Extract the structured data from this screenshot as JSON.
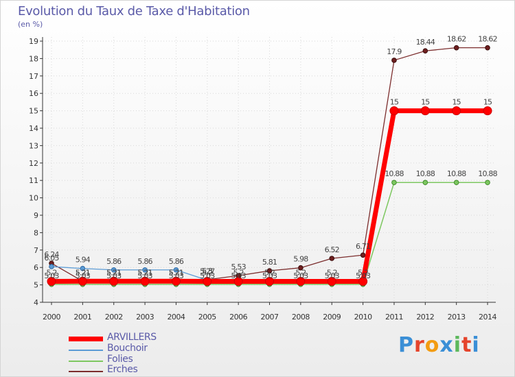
{
  "chart_data": {
    "type": "line",
    "title": "Evolution du Taux de Taxe d'Habitation",
    "ylabel": "(en %)",
    "xlabel": "",
    "ylim": [
      4,
      19
    ],
    "yticks": [
      "4",
      "5",
      "6",
      "7",
      "8",
      "9",
      "10",
      "11",
      "12",
      "13",
      "14",
      "15",
      "16",
      "17",
      "18",
      "19"
    ],
    "categories": [
      "2000",
      "2001",
      "2002",
      "2003",
      "2004",
      "2005",
      "2006",
      "2007",
      "2008",
      "2009",
      "2010",
      "2011",
      "2012",
      "2013",
      "2014"
    ],
    "series": [
      {
        "name": "ARVILLERS",
        "color": "#ff0000",
        "values": [
          5.2,
          5.21,
          5.21,
          5.21,
          5.21,
          5.2,
          5.2,
          5.2,
          5.2,
          5.2,
          5.2,
          15,
          15,
          15,
          15
        ],
        "labels": [
          "5.2",
          "5.21",
          "5.21",
          "5.21",
          "5.21",
          "5.2",
          "5.2",
          "5.2",
          "5.2",
          "5.2",
          "5.2",
          "15",
          "15",
          "15",
          "15"
        ]
      },
      {
        "name": "Bouchoir",
        "color": "#5b9bd5",
        "values": [
          6.05,
          5.94,
          5.86,
          5.86,
          5.86,
          5.27,
          null,
          null,
          null,
          null,
          null,
          null,
          null,
          null,
          null
        ],
        "labels": [
          "6.05",
          "5.94",
          "5.86",
          "5.86",
          "5.86",
          "5.27",
          "",
          "",
          "",
          "",
          "",
          "",
          "",
          "",
          ""
        ]
      },
      {
        "name": "Folies",
        "color": "#7dc760",
        "values": [
          5.03,
          5.03,
          5.03,
          5.03,
          5.03,
          5.03,
          5.03,
          5.03,
          5.03,
          5.03,
          5.03,
          10.88,
          10.88,
          10.88,
          10.88
        ],
        "labels": [
          "5.03",
          "5.03",
          "5.03",
          "5.03",
          "5.03",
          "5.03",
          "5.03",
          "5.03",
          "5.03",
          "5.03",
          "5.03",
          "10.88",
          "10.88",
          "10.88",
          "10.88"
        ]
      },
      {
        "name": "Erches",
        "color": "#7b2c2c",
        "values": [
          6.24,
          5.21,
          5.21,
          5.21,
          5.21,
          5.3,
          5.53,
          5.81,
          5.98,
          6.52,
          6.71,
          17.9,
          18.44,
          18.62,
          18.62
        ],
        "labels": [
          "6.24",
          "5.21",
          "5.21",
          "5.21",
          "5.21",
          "5.3",
          "5.53",
          "5.81",
          "5.98",
          "6.52",
          "6.71",
          "17.9",
          "18.44",
          "18.62",
          "18.62"
        ]
      }
    ]
  },
  "logo": {
    "text": "Proxiti",
    "colors": [
      "#3b8fd6",
      "#e5442c",
      "#f39c12",
      "#3b8fd6",
      "#5cb85c",
      "#e5442c",
      "#3b8fd6"
    ]
  }
}
